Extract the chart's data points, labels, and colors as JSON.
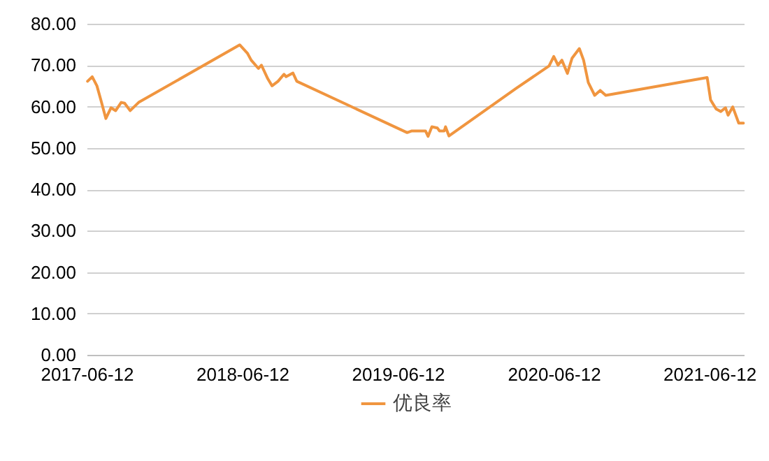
{
  "chart_data": {
    "type": "line",
    "x": [
      "2017-06-14",
      "2017-06-25",
      "2017-07-06",
      "2017-07-16",
      "2017-07-27",
      "2017-08-08",
      "2017-08-19",
      "2017-09-01",
      "2017-09-09",
      "2017-09-22",
      "2017-10-12",
      "2018-06-06",
      "2018-06-24",
      "2018-07-03",
      "2018-07-20",
      "2018-07-27",
      "2018-08-11",
      "2018-08-21",
      "2018-09-04",
      "2018-09-18",
      "2018-09-23",
      "2018-10-09",
      "2018-10-18",
      "2019-07-04",
      "2019-07-15",
      "2019-08-16",
      "2019-08-22",
      "2019-08-31",
      "2019-09-13",
      "2019-09-18",
      "2019-09-29",
      "2019-10-02",
      "2019-10-10",
      "2020-03-16",
      "2020-06-01",
      "2020-06-12",
      "2020-06-22",
      "2020-07-01",
      "2020-07-14",
      "2020-07-25",
      "2020-08-11",
      "2020-08-21",
      "2020-09-01",
      "2020-09-16",
      "2020-09-29",
      "2020-10-12",
      "2021-06-07",
      "2021-06-15",
      "2021-06-28",
      "2021-07-09",
      "2021-07-20",
      "2021-07-26",
      "2021-08-06",
      "2021-08-20",
      "2021-08-31"
    ],
    "series": [
      {
        "name": "优良率",
        "color": "#f0953f",
        "values": [
          66.1,
          67.2,
          65.0,
          61.3,
          57.1,
          59.7,
          59.0,
          61.0,
          60.8,
          59.0,
          61.0,
          74.9,
          72.9,
          71.2,
          69.2,
          70.0,
          66.7,
          65.0,
          66.1,
          67.8,
          67.2,
          68.1,
          66.1,
          53.7,
          54.1,
          54.1,
          52.8,
          55.1,
          54.8,
          54.1,
          54.1,
          55.1,
          52.9,
          64.4,
          69.8,
          72.1,
          70.0,
          71.2,
          68.0,
          71.7,
          74.0,
          71.2,
          65.8,
          62.7,
          63.9,
          62.7,
          67.0,
          61.6,
          59.4,
          58.8,
          59.7,
          57.9,
          59.9,
          56.0,
          56.0
        ]
      }
    ],
    "xlim": [
      "2017-06-12",
      "2021-09-01"
    ],
    "xticks": [
      "2017-06-12",
      "2018-06-12",
      "2019-06-12",
      "2020-06-12",
      "2021-06-12"
    ],
    "ylim": [
      0,
      80
    ],
    "yticks": [
      {
        "value": 0,
        "label": "0.00"
      },
      {
        "value": 10,
        "label": "10.00"
      },
      {
        "value": 20,
        "label": "20.00"
      },
      {
        "value": 30,
        "label": "30.00"
      },
      {
        "value": 40,
        "label": "40.00"
      },
      {
        "value": 50,
        "label": "50.00"
      },
      {
        "value": 60,
        "label": "60.00"
      },
      {
        "value": 70,
        "label": "70.00"
      },
      {
        "value": 80,
        "label": "80.00"
      }
    ],
    "grid": "y",
    "legend": "bottom",
    "marker": "none",
    "line_style": "solid"
  }
}
